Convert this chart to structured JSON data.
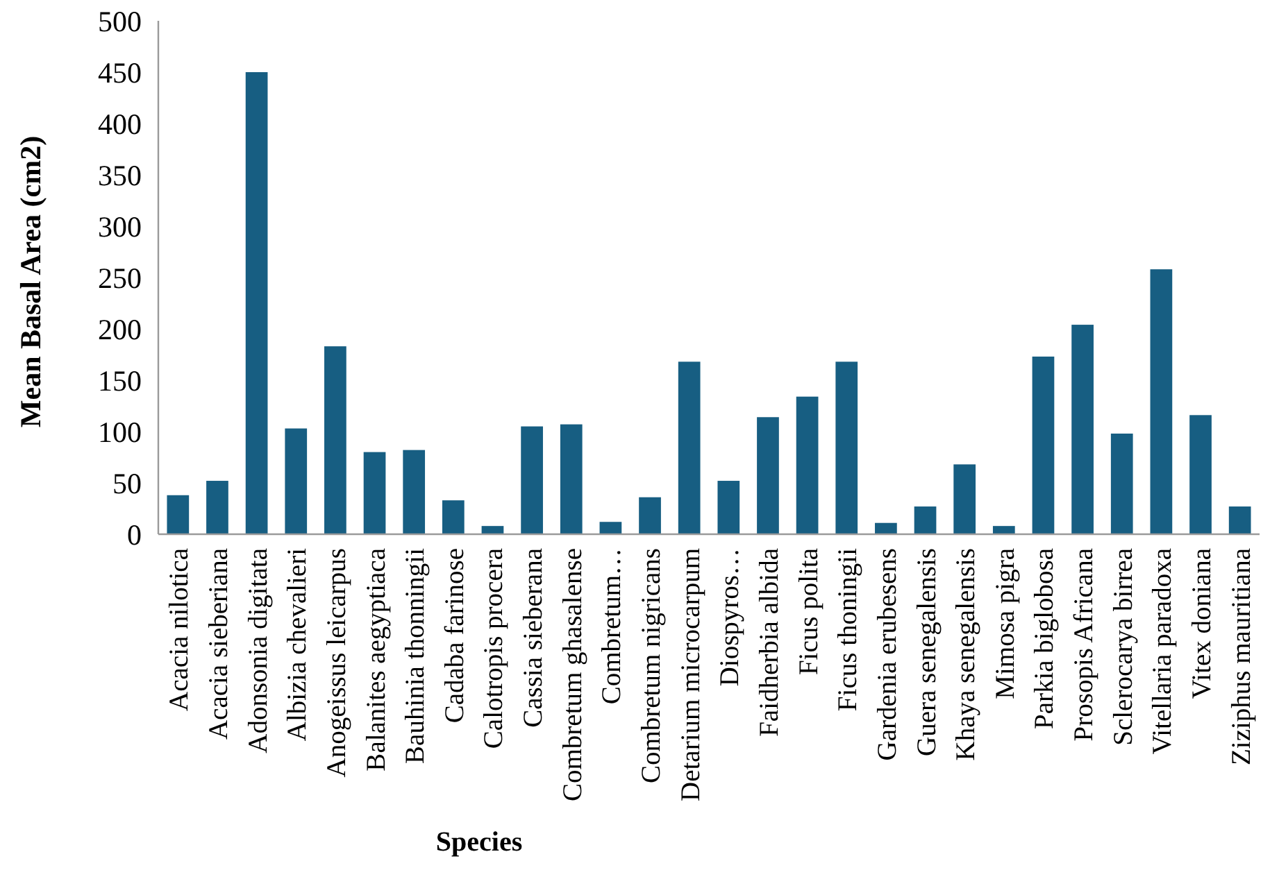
{
  "chart_data": {
    "type": "bar",
    "xlabel": "Species",
    "ylabel": "Mean Basal Area (cm2)",
    "categories": [
      "Acacia nilotica",
      "Acacia sieberiana",
      "Adonsonia digitata",
      "Albizia chevalieri",
      "Anogeissus leicarpus",
      "Balanites aegyptiaca",
      "Bauhinia thonningii",
      "Cadaba farinose",
      "Calotropis procera",
      "Cassia sieberana",
      "Combretum ghasalense",
      "Combretum…",
      "Combretum nigricans",
      "Detarium microcarpum",
      "Diospyros…",
      "Faidherbia albida",
      "Ficus polita",
      "Ficus thoningii",
      "Gardenia erubesens",
      "Guera senegalensis",
      "Khaya senegalensis",
      "Mimosa pigra",
      "Parkia biglobosa",
      "Prosopis Africana",
      "Sclerocarya birrea",
      "Vitellaria paradoxa",
      "Vitex doniana",
      "Ziziphus mauritiana"
    ],
    "values": [
      38,
      52,
      450,
      103,
      183,
      80,
      82,
      33,
      8,
      105,
      107,
      12,
      36,
      168,
      52,
      114,
      134,
      168,
      11,
      27,
      68,
      8,
      173,
      204,
      98,
      258,
      116,
      27
    ],
    "color": "#175e82",
    "ylim": [
      0,
      500
    ],
    "yticks": [
      0,
      50,
      100,
      150,
      200,
      250,
      300,
      350,
      400,
      450,
      500
    ],
    "grid": false
  }
}
